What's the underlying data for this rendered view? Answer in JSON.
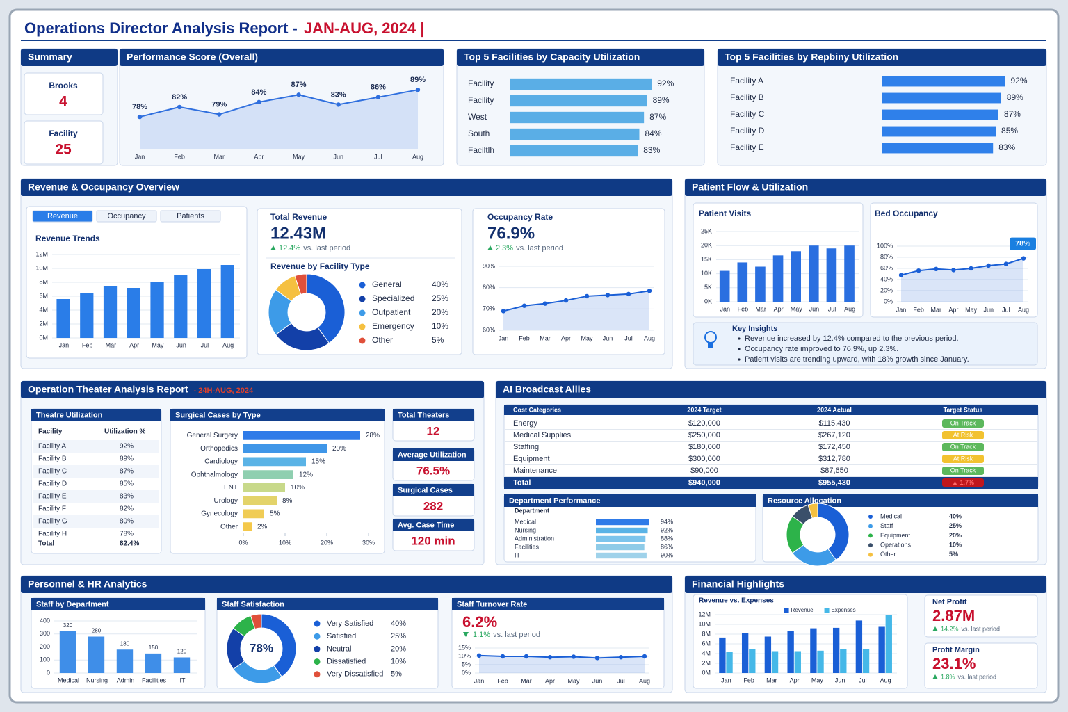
{
  "header": {
    "title": "Operations Director Analysis Report -",
    "period": "JAN-AUG, 2024 |"
  },
  "summary": {
    "title": "Summary",
    "cards": [
      {
        "label": "Brooks",
        "value": 4
      },
      {
        "label": "Facility",
        "value": 25
      }
    ]
  },
  "revenue_overview": {
    "title": "Revenue & Occupancy Overview",
    "tabs": [
      "Revenue",
      "Occupancy",
      "Patients"
    ],
    "total_revenue": {
      "label": "Total Revenue",
      "value": "12.43M",
      "change": "12.4%",
      "note": "vs. last period",
      "trend": "up"
    },
    "occupancy": {
      "label": "Occupancy Rate",
      "value": "76.9%",
      "change": "2.3%",
      "note": "vs. last period",
      "trend": "up"
    }
  },
  "patient_flow": {
    "title": "Patient Flow & Utilization",
    "insights": {
      "title": "Key Insights",
      "items": [
        "Revenue increased by 12.4% compared to the previous period.",
        "Occupancy rate improved to 76.9%, up 2.3%.",
        "Patient visits are trending upward, with 18% growth since January."
      ]
    }
  },
  "theater": {
    "title": "Operation Theater Analysis Report",
    "period": "- 24H-AUG, 2024",
    "table": {
      "title": "Theatre Utilization",
      "columns": [
        "Facility",
        "Utilization %"
      ],
      "rows": [
        [
          "Facility A",
          "92%"
        ],
        [
          "Facility B",
          "89%"
        ],
        [
          "Facility C",
          "87%"
        ],
        [
          "Facility D",
          "85%"
        ],
        [
          "Facility E",
          "83%"
        ],
        [
          "Facility F",
          "82%"
        ],
        [
          "Facility G",
          "80%"
        ],
        [
          "Facility H",
          "78%"
        ]
      ],
      "total": [
        "Total",
        "82.4%"
      ]
    },
    "kpis": [
      {
        "label": "Total Theaters",
        "value": "12"
      },
      {
        "label": "Average Utilization",
        "value": "76.5%"
      },
      {
        "label": "Surgical Cases",
        "value": "282"
      },
      {
        "label": "Avg. Case Time",
        "value": "120 min"
      }
    ]
  },
  "allies": {
    "title": "AI Broadcast Allies",
    "table": {
      "columns": [
        "Cost Categories",
        "2024 Target",
        "2024 Actual",
        "Target Status"
      ],
      "rows": [
        [
          "Energy",
          "$120,000",
          "$115,430",
          "On Track"
        ],
        [
          "Medical Supplies",
          "$250,000",
          "$267,120",
          "At Risk"
        ],
        [
          "Staffing",
          "$180,000",
          "$172,450",
          "On Track"
        ],
        [
          "Equipment",
          "$300,000",
          "$312,780",
          "At Risk"
        ],
        [
          "Maintenance",
          "$90,000",
          "$87,650",
          "On Track"
        ]
      ],
      "status_colors": [
        "#5cb85c",
        "#f2c230",
        "#5cb85c",
        "#f2c230",
        "#5cb85c"
      ],
      "total": [
        "Total",
        "$940,000",
        "$955,430",
        "▲ 1.7%"
      ],
      "total_status_color": "#c0161c"
    }
  },
  "personnel": {
    "title": "Personnel & HR Analytics",
    "turnover": {
      "label": "Staff Turnover Rate",
      "value": "6.2%",
      "change": "1.1%",
      "note": "vs. last period",
      "trend": "down"
    }
  },
  "financial": {
    "title": "Financial Highlights",
    "kpis": [
      {
        "label": "Net Profit",
        "value": "2.87M",
        "change": "14.2%",
        "note": "vs. last period",
        "trend": "up"
      },
      {
        "label": "Profit Margin",
        "value": "23.1%",
        "change": "1.8%",
        "note": "vs. last period",
        "trend": "up"
      }
    ]
  },
  "chart_data": [
    {
      "type": "line",
      "title": "Performance Score (Overall)",
      "categories": [
        "Jan",
        "Feb",
        "Mar",
        "Apr",
        "May",
        "Jun",
        "Jul",
        "Aug"
      ],
      "values": [
        78,
        82,
        79,
        84,
        87,
        83,
        86,
        89
      ],
      "value_labels": [
        "78%",
        "82%",
        "79%",
        "84%",
        "87%",
        "83%",
        "86%",
        "89%"
      ],
      "ylim": [
        65,
        95
      ],
      "color": "#2f6fde"
    },
    {
      "type": "hbar",
      "title": "Top 5 Facilities by Capacity Utilization",
      "categories": [
        "Facility",
        "Facility",
        "West",
        "South",
        "Faciltlh"
      ],
      "values": [
        92,
        89,
        87,
        84,
        83
      ],
      "value_labels": [
        "92%",
        "89%",
        "87%",
        "84%",
        "83%"
      ],
      "xlim": [
        0,
        100
      ],
      "color": "#5aaee6"
    },
    {
      "type": "hbar",
      "title": "Top 5 Facilities by Repbiny Utilization",
      "categories": [
        "Facility A",
        "Facility B",
        "Facility C",
        "Facility D",
        "Facility E"
      ],
      "values": [
        92,
        89,
        87,
        85,
        83
      ],
      "value_labels": [
        "92%",
        "89%",
        "87%",
        "85%",
        "83%"
      ],
      "xlim": [
        0,
        100
      ],
      "color": "#2f80ea"
    },
    {
      "type": "bar",
      "title": "Revenue Trends",
      "categories": [
        "Jan",
        "Feb",
        "Mar",
        "Apr",
        "May",
        "Jun",
        "Jul",
        "Aug"
      ],
      "values": [
        5.6,
        6.5,
        7.5,
        7.2,
        8,
        9,
        9.9,
        10.5
      ],
      "ylim": [
        0,
        12
      ],
      "color": "#2a7de8",
      "yticks": [
        {
          "value": 0,
          "label": "0M"
        },
        {
          "value": 2,
          "label": "2M"
        },
        {
          "value": 4,
          "label": "4M"
        },
        {
          "value": 6,
          "label": "6M"
        },
        {
          "value": 8,
          "label": "8M"
        },
        {
          "value": 10,
          "label": "10M"
        },
        {
          "value": 12,
          "label": "12M"
        }
      ]
    },
    {
      "type": "donut",
      "title": "Revenue by Facility Type",
      "categories": [
        "General",
        "Specialized",
        "Outpatient",
        "Emergency",
        "Other"
      ],
      "values": [
        40,
        25,
        20,
        10,
        5
      ],
      "value_labels": [
        "40%",
        "25%",
        "20%",
        "10%",
        "5%"
      ],
      "colors": [
        "#1a5fd6",
        "#1340a8",
        "#3d9be8",
        "#f5c040",
        "#e0503a"
      ]
    },
    {
      "type": "line",
      "title": "Occupancy Rate",
      "categories": [
        "Jan",
        "Feb",
        "Mar",
        "Apr",
        "May",
        "Jun",
        "Jul",
        "Aug"
      ],
      "values": [
        69,
        71.5,
        72.5,
        74,
        76,
        76.5,
        77,
        78.5
      ],
      "ylim": [
        60,
        90
      ],
      "color": "#1a5fd6",
      "yticks": [
        {
          "value": 60,
          "label": "60%"
        },
        {
          "value": 70,
          "label": "70%"
        },
        {
          "value": 80,
          "label": "80%"
        },
        {
          "value": 90,
          "label": "90%"
        }
      ]
    },
    {
      "type": "bar",
      "title": "Patient Visits",
      "categories": [
        "Jan",
        "Feb",
        "Mar",
        "Apr",
        "May",
        "Jun",
        "Jul",
        "Aug"
      ],
      "values": [
        11,
        14,
        12.5,
        16.5,
        18,
        20,
        19,
        20
      ],
      "ylim": [
        0,
        25
      ],
      "color": "#2a6fe0",
      "yticks": [
        {
          "value": 0,
          "label": "0K"
        },
        {
          "value": 5,
          "label": "5K"
        },
        {
          "value": 10,
          "label": "10K"
        },
        {
          "value": 15,
          "label": "15K"
        },
        {
          "value": 20,
          "label": "20K"
        },
        {
          "value": 25,
          "label": "25K"
        }
      ]
    },
    {
      "type": "line",
      "title": "Bed Occupancy",
      "categories": [
        "Jan",
        "Feb",
        "Mar",
        "Apr",
        "May",
        "Jun",
        "Jul",
        "Aug"
      ],
      "values": [
        48,
        56,
        59,
        57,
        60,
        65,
        68,
        78
      ],
      "ylim": [
        0,
        100
      ],
      "color": "#1a5fd6",
      "annotation": "78%",
      "yticks": [
        {
          "value": 0,
          "label": "0%"
        },
        {
          "value": 20,
          "label": "20%"
        },
        {
          "value": 40,
          "label": "40%"
        },
        {
          "value": 60,
          "label": "60%"
        },
        {
          "value": 80,
          "label": "80%"
        },
        {
          "value": 100,
          "label": "100%"
        }
      ]
    },
    {
      "type": "hbar",
      "title": "Surgical Cases by Type",
      "categories": [
        "General Surgery",
        "Orthopedics",
        "Cardiology",
        "Ophthalmology",
        "ENT",
        "Urology",
        "Gynecology",
        "Other"
      ],
      "values": [
        28,
        20,
        15,
        12,
        10,
        8,
        5,
        2
      ],
      "value_labels": [
        "28%",
        "20%",
        "15%",
        "12%",
        "10%",
        "8%",
        "5%",
        "2%"
      ],
      "xlim": [
        0,
        30
      ],
      "xticks": [
        {
          "value": 0,
          "label": "0%"
        },
        {
          "value": 10,
          "label": "10%"
        },
        {
          "value": 20,
          "label": "20%"
        },
        {
          "value": 30,
          "label": "30%"
        }
      ],
      "colors": [
        "#2f7be8",
        "#3f96e8",
        "#5ab3e6",
        "#8fcfb0",
        "#c8d98a",
        "#e3d36a",
        "#f0cc55",
        "#f4c84a"
      ]
    },
    {
      "type": "hbar",
      "title": "Department Performance",
      "axis_label": "Department",
      "categories": [
        "Medical",
        "Nursing",
        "Administration",
        "Facilities",
        "IT"
      ],
      "values": [
        94,
        92,
        88,
        86,
        90
      ],
      "value_labels": [
        "94%",
        "92%",
        "88%",
        "86%",
        "90%"
      ],
      "xlim": [
        0,
        100
      ],
      "colors": [
        "#2f7be8",
        "#5ab3e6",
        "#7cc4ec",
        "#8ecbe8",
        "#9fd2ea"
      ]
    },
    {
      "type": "donut",
      "title": "Resource Allocation",
      "categories": [
        "Medical",
        "Staff",
        "Equipment",
        "Operations",
        "Other"
      ],
      "values": [
        40,
        25,
        20,
        10,
        5
      ],
      "value_labels": [
        "40%",
        "25%",
        "20%",
        "10%",
        "5%"
      ],
      "colors": [
        "#1a5fd6",
        "#3d9be8",
        "#2db34a",
        "#3a4f6a",
        "#f5c040"
      ]
    },
    {
      "type": "bar",
      "title": "Staff by Department",
      "categories": [
        "Medical",
        "Nursing",
        "Admin",
        "Facilities",
        "IT"
      ],
      "values": [
        320,
        280,
        180,
        150,
        120
      ],
      "show_values": true,
      "ylim": [
        0,
        400
      ],
      "yticks": [
        0,
        100,
        200,
        300,
        400
      ],
      "color": "#3f8ee8"
    },
    {
      "type": "donut",
      "title": "Staff Satisfaction",
      "center_label": "78%",
      "categories": [
        "Very Satisfied",
        "Satisfied",
        "Neutral",
        "Dissatisfied",
        "Very Dissatisfied"
      ],
      "values": [
        40,
        25,
        20,
        10,
        5
      ],
      "value_labels": [
        "40%",
        "25%",
        "20%",
        "10%",
        "5%"
      ],
      "colors": [
        "#1a5fd6",
        "#3d9be8",
        "#1340a8",
        "#2db34a",
        "#e0503a"
      ]
    },
    {
      "type": "line",
      "title": "Staff Turnover Rate",
      "categories": [
        "Jan",
        "Feb",
        "Mar",
        "Apr",
        "May",
        "Jun",
        "Jul",
        "Aug"
      ],
      "values": [
        10.5,
        10,
        10,
        9.5,
        9.8,
        9,
        9.5,
        10
      ],
      "ylim": [
        0,
        15
      ],
      "color": "#1a5fd6",
      "yticks": [
        {
          "value": 0,
          "label": "0%"
        },
        {
          "value": 5,
          "label": "5%"
        },
        {
          "value": 10,
          "label": "10%"
        },
        {
          "value": 15,
          "label": "15%"
        }
      ]
    },
    {
      "type": "bar",
      "title": "Revenue vs. Expenses",
      "categories": [
        "Jan",
        "Feb",
        "Mar",
        "Apr",
        "May",
        "Jun",
        "Jul",
        "Aug"
      ],
      "series": [
        {
          "name": "Revenue",
          "color": "#1a5fd6",
          "values": [
            7.3,
            8.2,
            7.5,
            8.6,
            9.2,
            9.3,
            10.8,
            9.5
          ]
        },
        {
          "name": "Expenses",
          "color": "#45b8e8",
          "values": [
            4.3,
            4.9,
            4.5,
            4.5,
            4.6,
            4.9,
            4.9,
            12
          ]
        }
      ],
      "ylim": [
        0,
        12
      ],
      "yticks": [
        {
          "value": 0,
          "label": "0M"
        },
        {
          "value": 2,
          "label": "2M"
        },
        {
          "value": 4,
          "label": "4M"
        },
        {
          "value": 6,
          "label": "6M"
        },
        {
          "value": 8,
          "label": "8M"
        },
        {
          "value": 10,
          "label": "10M"
        },
        {
          "value": 12,
          "label": "12M"
        }
      ]
    }
  ]
}
